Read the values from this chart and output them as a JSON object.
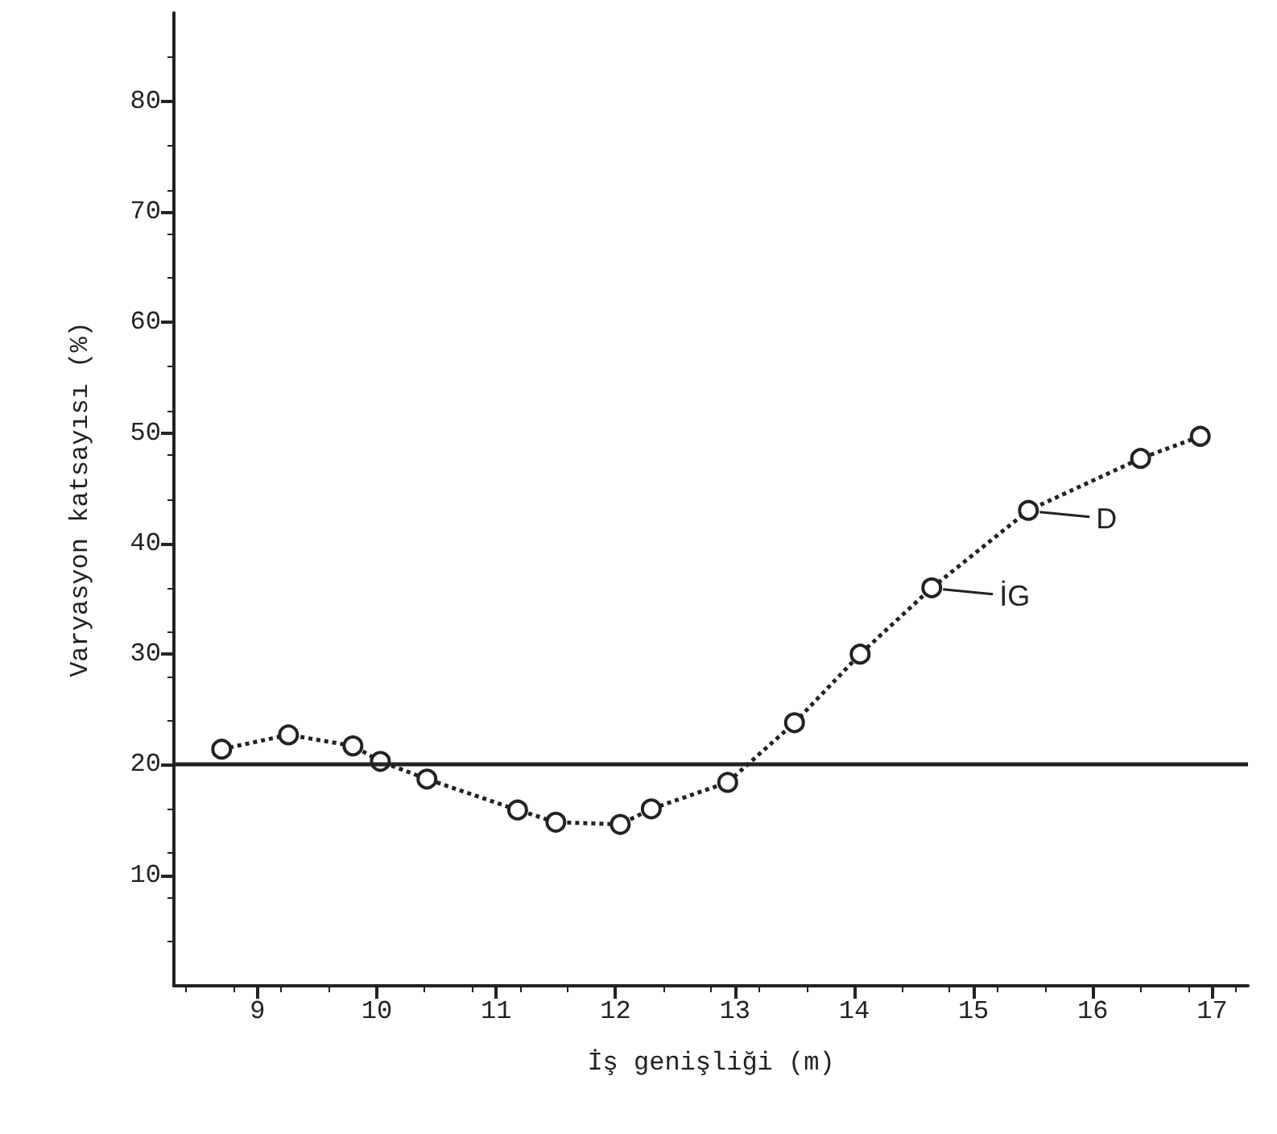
{
  "chart_data": {
    "type": "line",
    "xlabel": "İş genişliği (m)",
    "ylabel": "Varyasyon katsayısı (%)",
    "x": [
      8.7,
      9.26,
      9.8,
      10.03,
      10.42,
      11.18,
      11.5,
      12.04,
      12.3,
      12.94,
      13.5,
      14.05,
      14.65,
      15.46,
      16.4,
      16.9
    ],
    "series": [
      {
        "color": "#222222",
        "values": [
          21.4,
          22.7,
          21.7,
          20.3,
          18.7,
          15.9,
          14.8,
          14.6,
          16.0,
          18.4,
          23.8,
          30.0,
          36.0,
          43.0,
          47.7,
          49.7
        ]
      }
    ],
    "xlim": [
      8.3,
      17.3
    ],
    "xticks": [
      9,
      10,
      11,
      12,
      13,
      14,
      15,
      16,
      17
    ],
    "ylim": [
      0,
      88
    ],
    "yticks": [
      10,
      20,
      30,
      40,
      50,
      60,
      70,
      80
    ],
    "ref_lines": [
      {
        "axis": "y",
        "value": 20,
        "color": "#222222"
      }
    ],
    "annotations": [
      {
        "text": "D",
        "x": 15.46,
        "y": 43.0
      },
      {
        "text": "İG",
        "x": 14.65,
        "y": 36.0
      }
    ],
    "grid": false,
    "marker": "circle",
    "line_style": "dotted"
  }
}
